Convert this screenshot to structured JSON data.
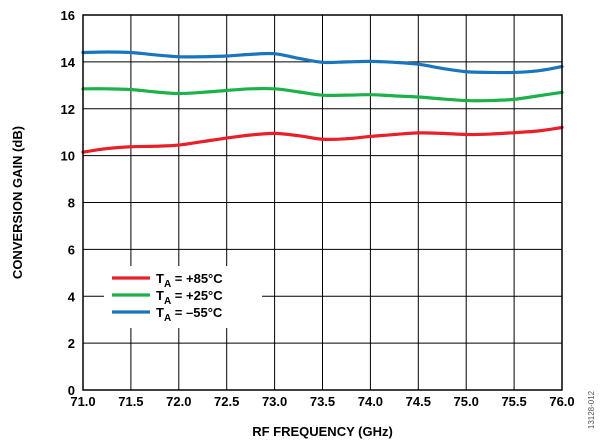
{
  "chart_data": {
    "type": "line",
    "title": "",
    "xlabel": "RF FREQUENCY (GHz)",
    "ylabel": "CONVERSION GAIN (dB)",
    "xlim": [
      71.0,
      76.0
    ],
    "ylim": [
      0,
      16
    ],
    "x_ticks": [
      "71.0",
      "71.5",
      "72.0",
      "72.5",
      "73.0",
      "73.5",
      "74.0",
      "74.5",
      "75.0",
      "75.5",
      "76.0"
    ],
    "y_ticks": [
      "0",
      "2",
      "4",
      "6",
      "8",
      "10",
      "12",
      "14",
      "16"
    ],
    "grid": true,
    "legend_position": "bottom-left",
    "series": [
      {
        "name_main": "T",
        "name_sub": "A",
        "name_value": " = +85°C",
        "color": "#e8202a",
        "x": [
          71.0,
          71.25,
          71.5,
          71.75,
          72.0,
          72.25,
          72.5,
          72.75,
          73.0,
          73.25,
          73.5,
          73.75,
          74.0,
          74.25,
          74.5,
          74.75,
          75.0,
          75.25,
          75.5,
          75.75,
          76.0
        ],
        "y": [
          10.15,
          10.3,
          10.38,
          10.4,
          10.45,
          10.6,
          10.75,
          10.88,
          10.95,
          10.85,
          10.7,
          10.72,
          10.82,
          10.9,
          10.97,
          10.95,
          10.9,
          10.92,
          10.98,
          11.05,
          11.2
        ]
      },
      {
        "name_main": "T",
        "name_sub": "A",
        "name_value": " = +25°C",
        "color": "#1db14b",
        "x": [
          71.0,
          71.25,
          71.5,
          71.75,
          72.0,
          72.25,
          72.5,
          72.75,
          73.0,
          73.25,
          73.5,
          73.75,
          74.0,
          74.25,
          74.5,
          74.75,
          75.0,
          75.25,
          75.5,
          75.75,
          76.0
        ],
        "y": [
          12.85,
          12.85,
          12.82,
          12.72,
          12.65,
          12.7,
          12.78,
          12.85,
          12.85,
          12.72,
          12.58,
          12.58,
          12.6,
          12.55,
          12.5,
          12.42,
          12.35,
          12.35,
          12.4,
          12.55,
          12.7
        ]
      },
      {
        "name_main": "T",
        "name_sub": "A",
        "name_value": " = –55°C",
        "color": "#1b75bc",
        "x": [
          71.0,
          71.25,
          71.5,
          71.75,
          72.0,
          72.25,
          72.5,
          72.75,
          73.0,
          73.25,
          73.5,
          73.75,
          74.0,
          74.25,
          74.5,
          74.75,
          75.0,
          75.25,
          75.5,
          75.75,
          76.0
        ],
        "y": [
          14.4,
          14.42,
          14.4,
          14.3,
          14.22,
          14.22,
          14.25,
          14.32,
          14.35,
          14.15,
          13.98,
          14.0,
          14.02,
          13.98,
          13.9,
          13.72,
          13.58,
          13.55,
          13.55,
          13.62,
          13.8
        ]
      }
    ]
  },
  "figure_id": "13128-012"
}
